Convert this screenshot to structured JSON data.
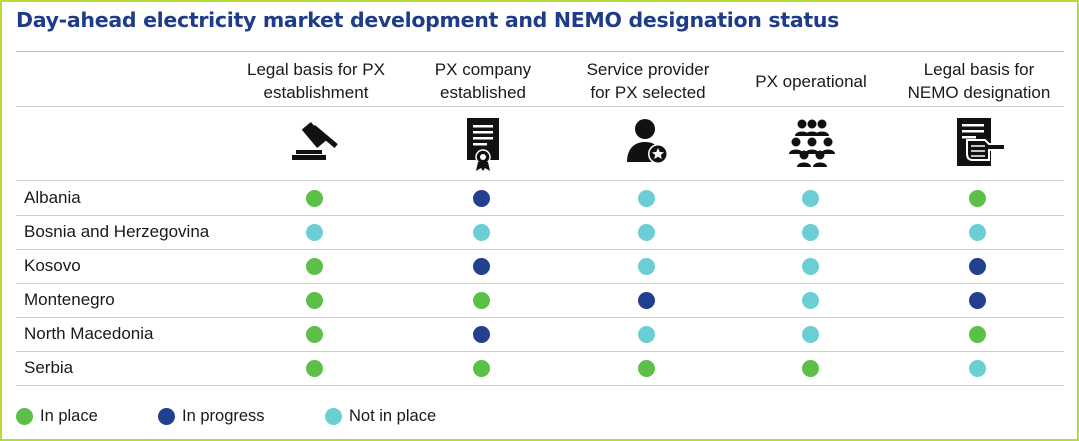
{
  "title": "Day-ahead electricity market development and NEMO designation status",
  "colors": {
    "in_place": "#5cbf47",
    "in_progress": "#233f8f",
    "not_in_place": "#6acfd4",
    "title": "#1f3c88",
    "frame": "#b5dc3a"
  },
  "columns": [
    {
      "label_line1": "Legal basis for PX",
      "label_line2": "establishment",
      "icon": "gavel-icon"
    },
    {
      "label_line1": "PX company",
      "label_line2": "established",
      "icon": "certificate-icon"
    },
    {
      "label_line1": "Service provider",
      "label_line2": "for PX selected",
      "icon": "user-star-icon"
    },
    {
      "label_line1": "PX operational",
      "label_line2": "",
      "icon": "group-icon"
    },
    {
      "label_line1": "Legal basis for",
      "label_line2": "NEMO designation",
      "icon": "document-hand-icon"
    }
  ],
  "rows": [
    {
      "country": "Albania",
      "status": [
        "in_place",
        "in_progress",
        "not_in_place",
        "not_in_place",
        "in_place"
      ]
    },
    {
      "country": "Bosnia and Herzegovina",
      "status": [
        "not_in_place",
        "not_in_place",
        "not_in_place",
        "not_in_place",
        "not_in_place"
      ]
    },
    {
      "country": "Kosovo",
      "status": [
        "in_place",
        "in_progress",
        "not_in_place",
        "not_in_place",
        "in_progress"
      ]
    },
    {
      "country": "Montenegro",
      "status": [
        "in_place",
        "in_place",
        "in_progress",
        "not_in_place",
        "in_progress"
      ]
    },
    {
      "country": "North Macedonia",
      "status": [
        "in_place",
        "in_progress",
        "not_in_place",
        "not_in_place",
        "in_place"
      ]
    },
    {
      "country": "Serbia",
      "status": [
        "in_place",
        "in_place",
        "in_place",
        "in_place",
        "not_in_place"
      ]
    }
  ],
  "legend": {
    "in_place": "In place",
    "in_progress": "In progress",
    "not_in_place": "Not in place"
  }
}
